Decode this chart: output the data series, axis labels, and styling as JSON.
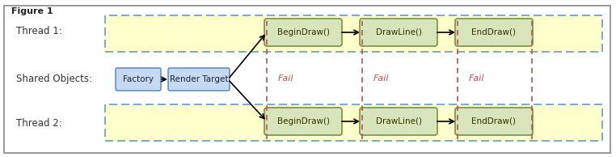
{
  "title": "Figure 1",
  "bg_color": "#ffffff",
  "outer_border_color": "#aaaaaa",
  "thread_bg": "#ffffcc",
  "thread_border": "#6699cc",
  "shared_bg": "#ffffff",
  "factory_box_color": "#c5d9f1",
  "factory_box_border": "#4f81bd",
  "green_box_color": "#d8e4bc",
  "green_box_border": "#76923c",
  "fail_color": "#c0504d",
  "arrow_color": "#000000",
  "label_color": "#4f6228",
  "thread1_label": "Thread 1:",
  "thread2_label": "Thread 2:",
  "shared_label": "Shared Objects:",
  "factory_label": "Factory",
  "render_label": "Render Target",
  "box_labels": [
    "BeginDraw()",
    "DrawLine()",
    "EndDraw()"
  ],
  "fail_label": "Fail",
  "fig_width": 7.62,
  "fig_height": 1.94,
  "dpi": 100
}
